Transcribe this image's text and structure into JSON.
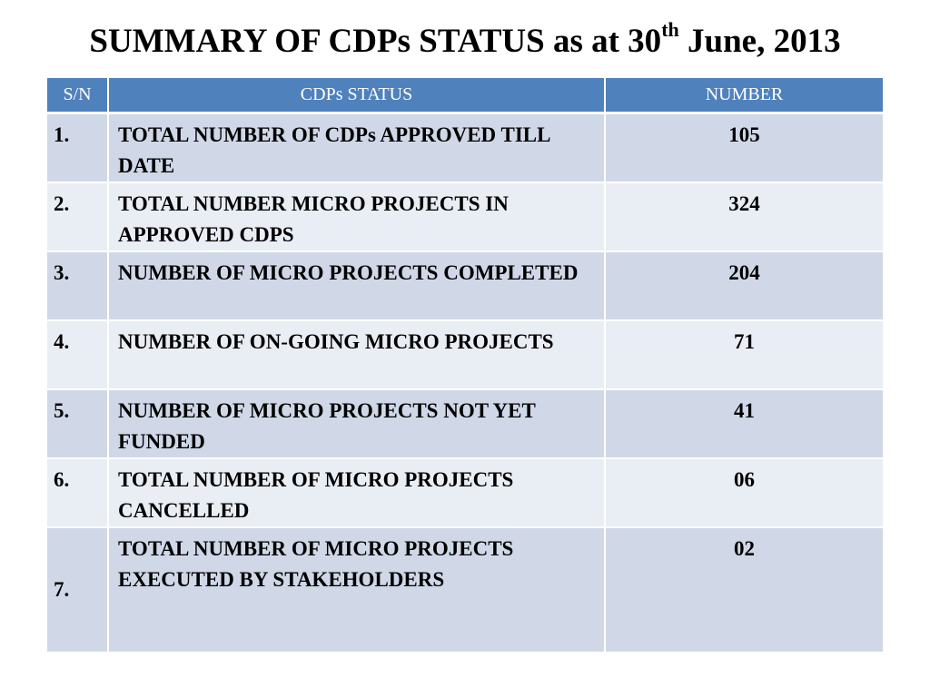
{
  "slide": {
    "title_main": "SUMMARY OF CDPs STATUS as at 30",
    "title_sup": "th",
    "title_end": " June, 2013"
  },
  "table": {
    "headers": {
      "sn": "S/N",
      "status": "CDPs STATUS",
      "number": "NUMBER"
    },
    "rows": [
      {
        "sn": "1.",
        "status": "TOTAL NUMBER OF CDPs APPROVED TILL DATE",
        "number": "105"
      },
      {
        "sn": "2.",
        "status": "TOTAL NUMBER MICRO PROJECTS IN APPROVED CDPS",
        "number": "324"
      },
      {
        "sn": "3.",
        "status": "NUMBER OF MICRO PROJECTS COMPLETED",
        "number": "204"
      },
      {
        "sn": "4.",
        "status": "NUMBER OF ON-GOING MICRO PROJECTS",
        "number": "71"
      },
      {
        "sn": "5.",
        "status": "NUMBER OF MICRO PROJECTS NOT YET FUNDED",
        "number": "41"
      },
      {
        "sn": "6.",
        "status": "TOTAL NUMBER OF MICRO PROJECTS CANCELLED",
        "number": "06"
      },
      {
        "sn": "7.",
        "status": "TOTAL NUMBER OF MICRO PROJECTS EXECUTED BY STAKEHOLDERS",
        "number": "02"
      }
    ]
  },
  "colors": {
    "header_bg": "#4f81bd",
    "row_dark": "#d0d8e8",
    "row_light": "#e9edf4"
  }
}
